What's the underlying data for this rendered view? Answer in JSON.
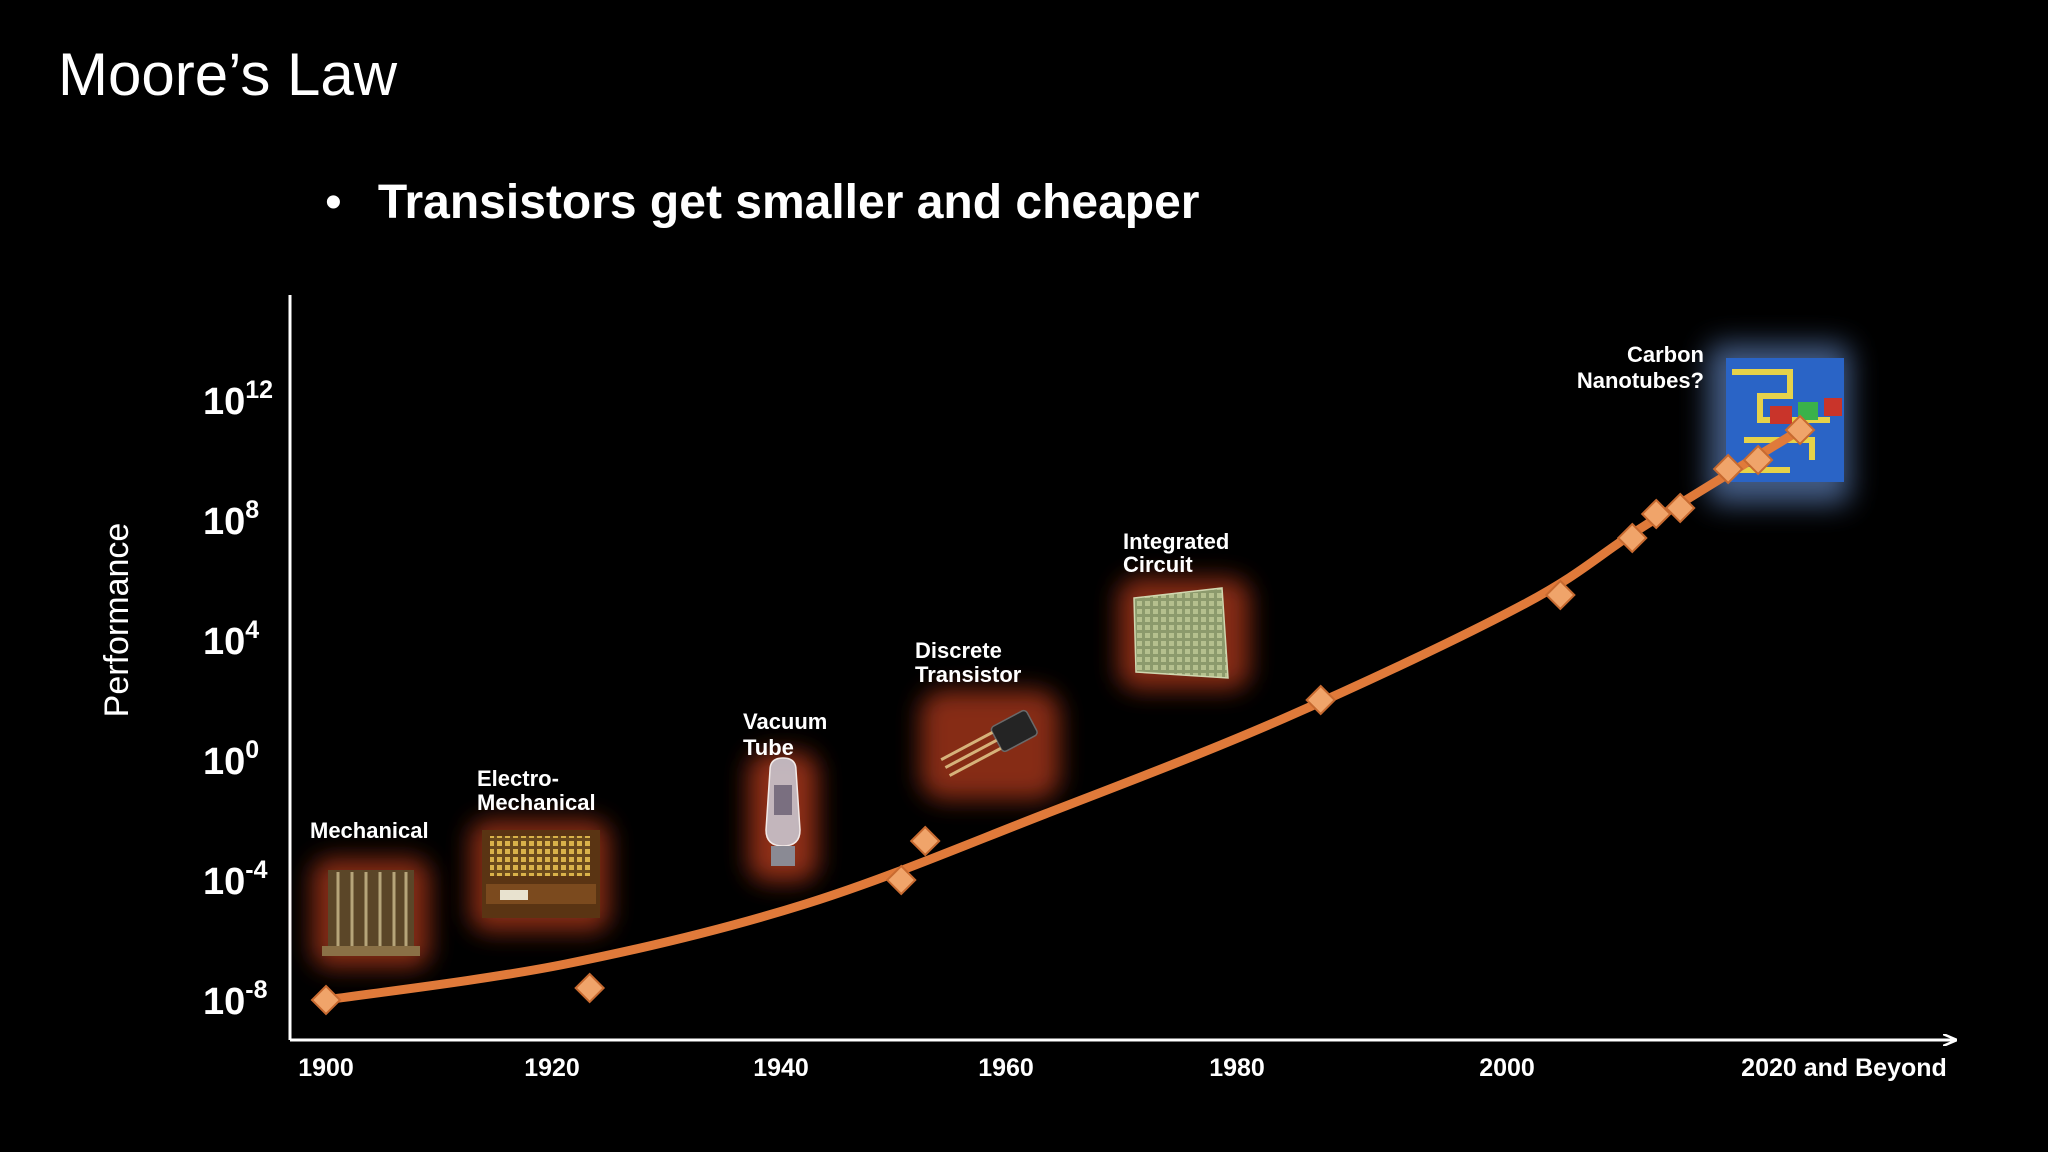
{
  "slide": {
    "title": "Moore’s Law",
    "bullet": "Transistors get smaller and cheaper"
  },
  "chart_data": {
    "type": "line",
    "title": "",
    "ylabel": "Performance",
    "xlabel": "",
    "y_scale": "log10",
    "ylim_exponent": [
      -10,
      15
    ],
    "xlim": [
      1900,
      2025
    ],
    "x_ticks": [
      {
        "label": "1900",
        "value": 1900
      },
      {
        "label": "1920",
        "value": 1920
      },
      {
        "label": "1940",
        "value": 1940
      },
      {
        "label": "1960",
        "value": 1960
      },
      {
        "label": "1980",
        "value": 1980
      },
      {
        "label": "2000",
        "value": 2000
      },
      {
        "label": "2020 and Beyond",
        "value": 2020
      }
    ],
    "y_ticks": [
      {
        "base": "10",
        "exp": "12",
        "value": 12
      },
      {
        "base": "10",
        "exp": "8",
        "value": 8
      },
      {
        "base": "10",
        "exp": "4",
        "value": 4
      },
      {
        "base": "10",
        "exp": "0",
        "value": 0
      },
      {
        "base": "10",
        "exp": "-4",
        "value": -4
      },
      {
        "base": "10",
        "exp": "-8",
        "value": -8
      }
    ],
    "points": [
      {
        "x": 1900,
        "y": -8
      },
      {
        "x": 1922,
        "y": -7.6
      },
      {
        "x": 1948,
        "y": -4
      },
      {
        "x": 1950,
        "y": -2.7
      },
      {
        "x": 1983,
        "y": 2
      },
      {
        "x": 2003,
        "y": 5.5
      },
      {
        "x": 2009,
        "y": 7.4
      },
      {
        "x": 2011,
        "y": 8.2
      },
      {
        "x": 2013,
        "y": 8.4
      },
      {
        "x": 2017,
        "y": 9.7
      },
      {
        "x": 2019.5,
        "y": 10.0
      },
      {
        "x": 2023,
        "y": 11.0
      }
    ],
    "trend_curve": [
      {
        "x": 1900,
        "y": -8
      },
      {
        "x": 1920,
        "y": -6.8
      },
      {
        "x": 1940,
        "y": -4.8
      },
      {
        "x": 1960,
        "y": -1.8
      },
      {
        "x": 1980,
        "y": 1.4
      },
      {
        "x": 2000,
        "y": 5.2
      },
      {
        "x": 2010,
        "y": 7.8
      },
      {
        "x": 2023,
        "y": 11.0
      }
    ],
    "line_color": "#e07a3a",
    "marker_color": "#f0a46a",
    "annotations": [
      {
        "name": "mechanical",
        "lines": [
          "Mechanical"
        ],
        "icon": "mechanical-calculator-icon",
        "glow": "#b33a1e"
      },
      {
        "name": "electro-mechanical",
        "lines": [
          "Electro-",
          "Mechanical"
        ],
        "icon": "relay-machine-icon",
        "glow": "#b33a1e"
      },
      {
        "name": "vacuum-tube",
        "lines": [
          "Vacuum",
          "Tube"
        ],
        "icon": "vacuum-tube-icon",
        "glow": "#b33a1e"
      },
      {
        "name": "discrete-transistor",
        "lines": [
          "Discrete",
          "Transistor"
        ],
        "icon": "transistor-icon",
        "glow": "#b33a1e"
      },
      {
        "name": "integrated-circuit",
        "lines": [
          "Integrated",
          "Circuit"
        ],
        "icon": "chip-icon",
        "glow": "#b33a1e"
      },
      {
        "name": "carbon-nanotubes",
        "lines": [
          "Carbon",
          "Nanotubes?"
        ],
        "icon": "nanotube-icon",
        "glow": "#5a7ab0"
      }
    ]
  }
}
